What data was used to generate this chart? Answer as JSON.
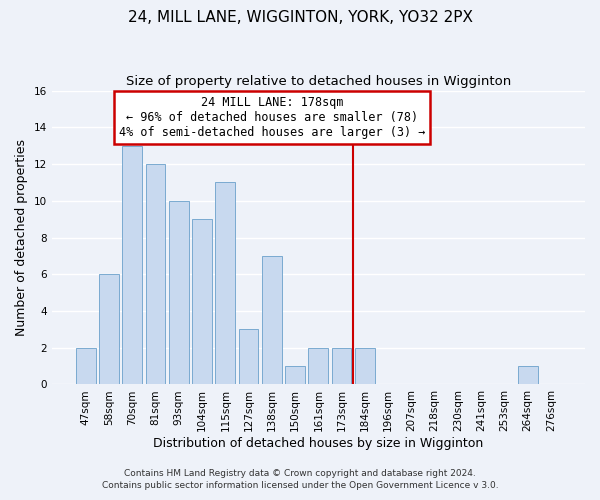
{
  "title": "24, MILL LANE, WIGGINTON, YORK, YO32 2PX",
  "subtitle": "Size of property relative to detached houses in Wigginton",
  "xlabel": "Distribution of detached houses by size in Wigginton",
  "ylabel": "Number of detached properties",
  "bar_labels": [
    "47sqm",
    "58sqm",
    "70sqm",
    "81sqm",
    "93sqm",
    "104sqm",
    "115sqm",
    "127sqm",
    "138sqm",
    "150sqm",
    "161sqm",
    "173sqm",
    "184sqm",
    "196sqm",
    "207sqm",
    "218sqm",
    "230sqm",
    "241sqm",
    "253sqm",
    "264sqm",
    "276sqm"
  ],
  "bar_values": [
    2,
    6,
    13,
    12,
    10,
    9,
    11,
    3,
    7,
    1,
    2,
    2,
    2,
    0,
    0,
    0,
    0,
    0,
    0,
    1,
    0
  ],
  "bar_color": "#c8d9ef",
  "bar_edge_color": "#7aaad0",
  "marker_label": "24 MILL LANE: 178sqm",
  "annotation_line1": "← 96% of detached houses are smaller (78)",
  "annotation_line2": "4% of semi-detached houses are larger (3) →",
  "annotation_box_color": "#ffffff",
  "annotation_box_edge_color": "#cc0000",
  "marker_line_color": "#cc0000",
  "ylim": [
    0,
    16
  ],
  "yticks": [
    0,
    2,
    4,
    6,
    8,
    10,
    12,
    14,
    16
  ],
  "footer_line1": "Contains HM Land Registry data © Crown copyright and database right 2024.",
  "footer_line2": "Contains public sector information licensed under the Open Government Licence v 3.0.",
  "background_color": "#eef2f9",
  "grid_color": "#ffffff",
  "title_fontsize": 11,
  "subtitle_fontsize": 9.5,
  "axis_label_fontsize": 9,
  "tick_fontsize": 7.5,
  "footer_fontsize": 6.5,
  "annot_fontsize": 8.5
}
